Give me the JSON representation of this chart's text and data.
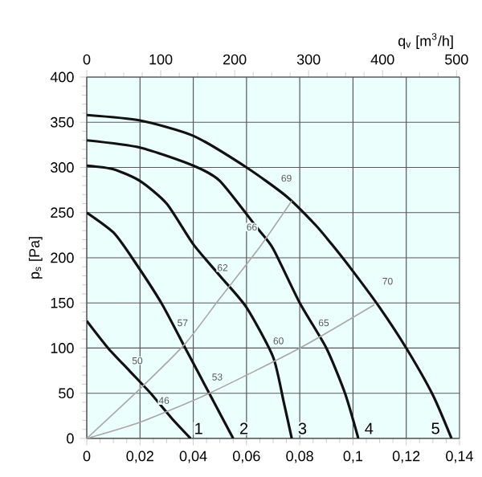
{
  "chart_data": {
    "type": "line",
    "xlabel": null,
    "ylabel": "p$_{s}$ [Pa]",
    "x2label": "q$_{v}$ [m$^{3}$/h]",
    "xlim": [
      0,
      0.14
    ],
    "ylim": [
      0,
      400
    ],
    "x2lim": [
      0,
      504
    ],
    "xticks": [
      0,
      {
        "value": 0.02,
        "label": "0,02"
      },
      {
        "value": 0.04,
        "label": "0,04"
      },
      {
        "value": 0.06,
        "label": "0,06"
      },
      {
        "value": 0.08,
        "label": "0,08"
      },
      {
        "value": 0.1,
        "label": "0,1"
      },
      {
        "value": 0.12,
        "label": "0,12"
      },
      {
        "value": 0.14,
        "label": "0,14"
      }
    ],
    "yticks": [
      0,
      50,
      100,
      150,
      200,
      250,
      300,
      350,
      400
    ],
    "x2ticks": [
      0,
      100,
      200,
      300,
      400,
      500
    ],
    "grid": true,
    "marker": "none",
    "line_style": "solid",
    "series": [
      {
        "color": "#111111",
        "x": [
          0,
          0.008,
          0.016,
          0.024,
          0.032,
          0.039
        ],
        "values": [
          130,
          100,
          75,
          50,
          22,
          0
        ]
      },
      {
        "color": "#111111",
        "x": [
          0,
          0.01,
          0.017,
          0.028,
          0.037,
          0.046,
          0.055
        ],
        "values": [
          250,
          228,
          200,
          150,
          100,
          50,
          0
        ]
      },
      {
        "color": "#111111",
        "x": [
          0,
          0.01,
          0.02,
          0.03,
          0.04,
          0.05,
          0.06,
          0.07,
          0.074,
          0.077
        ],
        "values": [
          302,
          298,
          285,
          260,
          215,
          180,
          145,
          90,
          40,
          0
        ]
      },
      {
        "color": "#111111",
        "x": [
          0,
          0.02,
          0.04,
          0.05,
          0.064,
          0.07,
          0.08,
          0.09,
          0.097,
          0.102
        ],
        "values": [
          330,
          322,
          302,
          285,
          233,
          210,
          150,
          100,
          50,
          0
        ]
      },
      {
        "color": "#111111",
        "x": [
          0,
          0.02,
          0.04,
          0.06,
          0.075,
          0.086,
          0.092,
          0.1,
          0.11,
          0.12,
          0.13,
          0.137
        ],
        "values": [
          358,
          352,
          335,
          300,
          268,
          236,
          215,
          185,
          145,
          100,
          48,
          0
        ]
      },
      {
        "color": "#a8a8a8",
        "x": [
          0,
          0.02,
          0.037,
          0.05,
          0.065,
          0.077
        ],
        "values": [
          0,
          55,
          105,
          155,
          212,
          263
        ]
      },
      {
        "color": "#a8a8a8",
        "x": [
          0,
          0.02,
          0.046,
          0.08,
          0.108
        ],
        "values": [
          0,
          18,
          50,
          100,
          148
        ]
      }
    ],
    "annotations": [
      "46",
      "50",
      "53",
      "57",
      "60",
      "62",
      "65",
      "66",
      "69",
      "70",
      "1",
      "2",
      "3",
      "4",
      "5"
    ]
  }
}
